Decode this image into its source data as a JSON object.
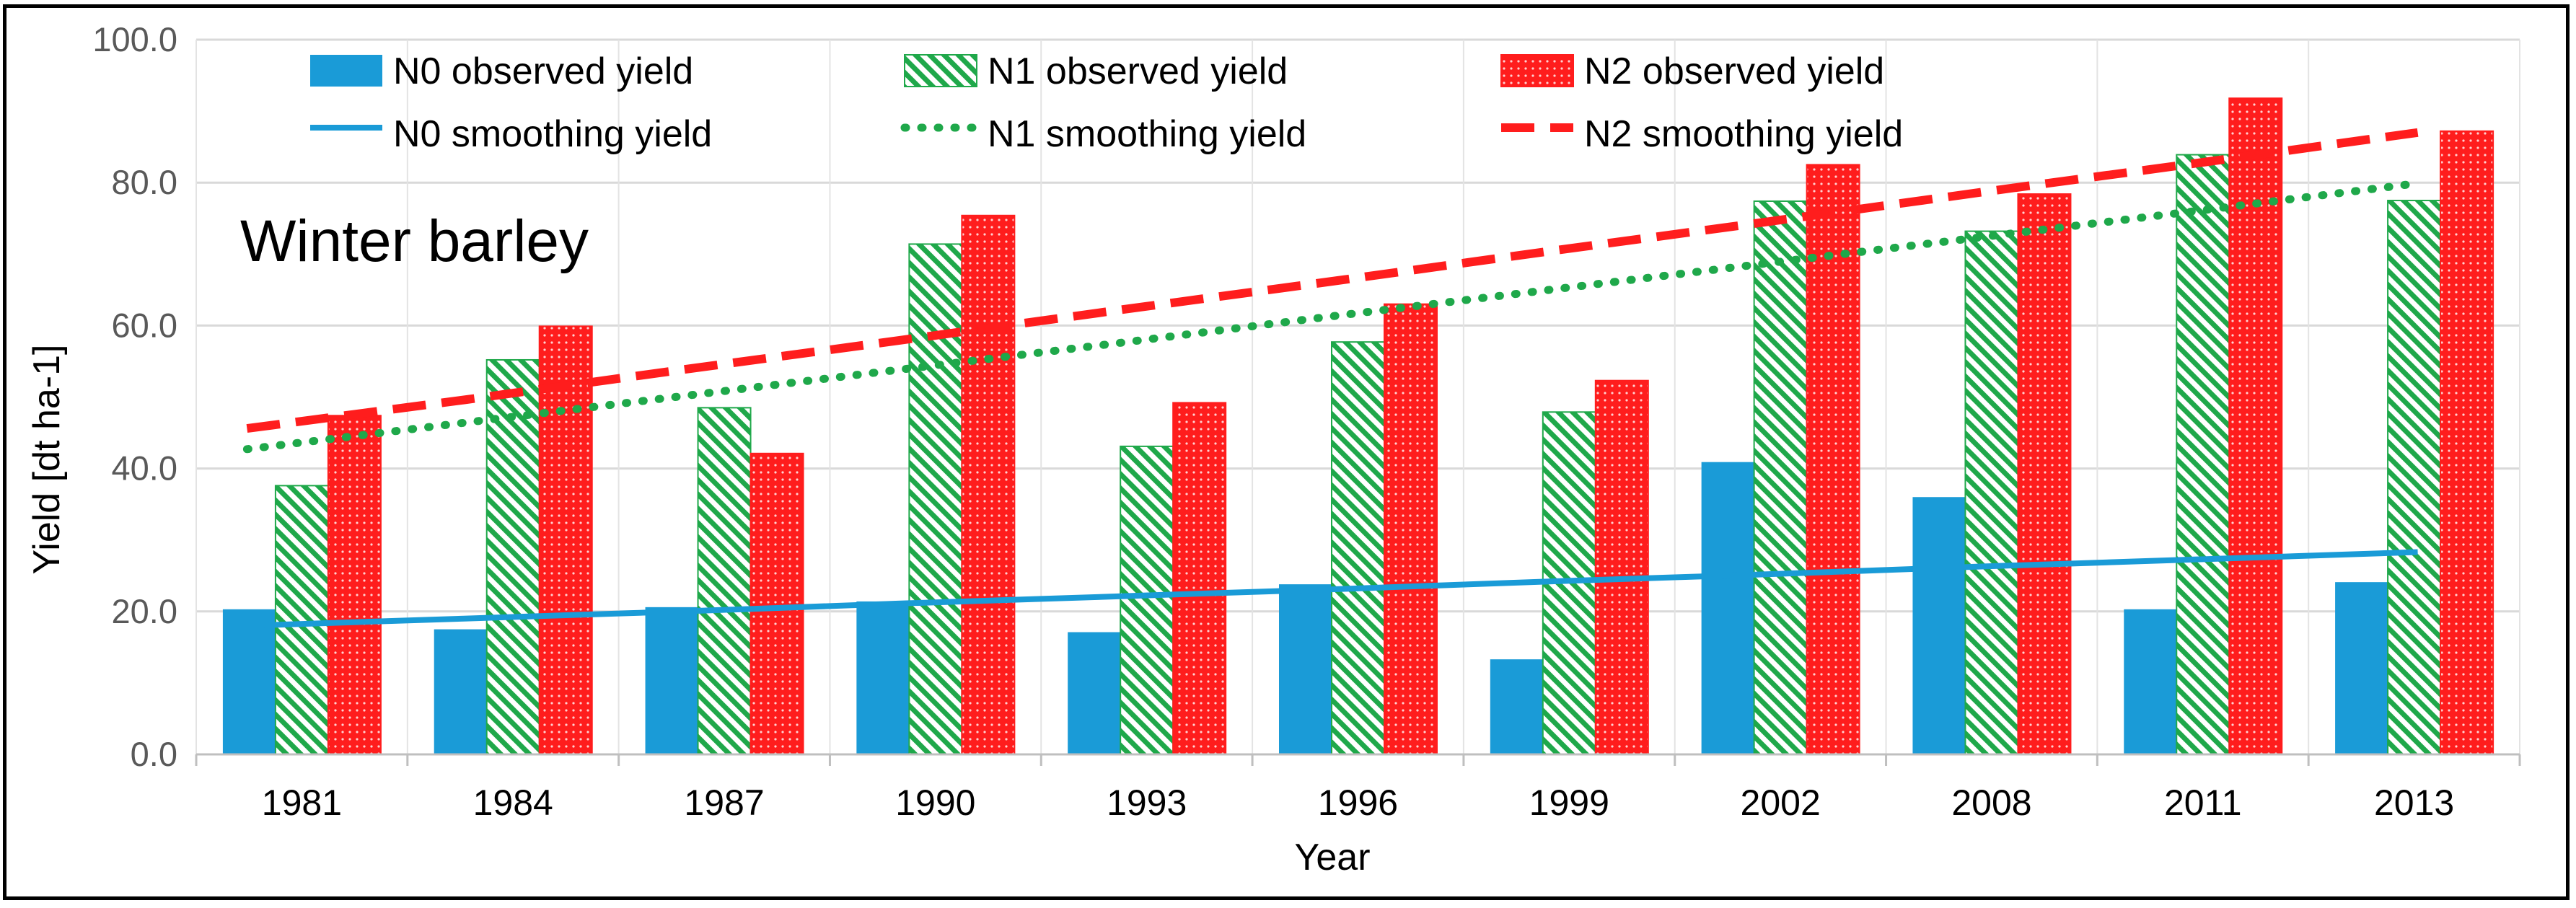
{
  "chart_data": {
    "type": "bar",
    "title": "",
    "annotation": "Winter barley",
    "xlabel": "Year",
    "ylabel": "Yield [dt ha-1]",
    "ylim": [
      0,
      100
    ],
    "yticks": [
      "0.0",
      "20.0",
      "40.0",
      "60.0",
      "80.0",
      "100.0"
    ],
    "grid": true,
    "legend_position": "top",
    "categories": [
      "1981",
      "1984",
      "1987",
      "1990",
      "1993",
      "1996",
      "1999",
      "2002",
      "2008",
      "2011",
      "2013"
    ],
    "series": [
      {
        "name": "N0 observed yield",
        "kind": "bar",
        "pattern": "solid",
        "color": "#1a9bd7",
        "values": [
          20.3,
          17.5,
          20.6,
          21.4,
          17.1,
          23.8,
          13.3,
          40.9,
          36.0,
          20.3,
          24.1
        ]
      },
      {
        "name": "N1 observed yield",
        "kind": "bar",
        "pattern": "diagonal-stripes",
        "color": "#1fa84a",
        "values": [
          37.6,
          55.2,
          48.5,
          71.4,
          43.1,
          57.7,
          47.9,
          77.4,
          73.2,
          83.9,
          77.5
        ]
      },
      {
        "name": "N2 observed yield",
        "kind": "bar",
        "pattern": "dotted-grid",
        "color": "#ff1d1d",
        "values": [
          47.4,
          59.9,
          42.1,
          75.4,
          49.2,
          63.0,
          52.3,
          82.5,
          78.4,
          91.8,
          87.2
        ]
      },
      {
        "name": "N0 smoothing yield",
        "kind": "line",
        "style": "solid",
        "color": "#1a9bd7",
        "values": [
          18.0,
          19.0,
          20.0,
          21.1,
          22.1,
          23.1,
          24.2,
          25.2,
          26.3,
          27.3,
          28.3
        ]
      },
      {
        "name": "N1 smoothing yield",
        "kind": "line",
        "style": "dotted",
        "color": "#1fa84a",
        "values": [
          42.7,
          46.4,
          50.1,
          53.8,
          57.5,
          61.3,
          65.0,
          68.7,
          72.4,
          76.1,
          79.9
        ]
      },
      {
        "name": "N2 smoothing yield",
        "kind": "line",
        "style": "dashed",
        "color": "#ff1d1d",
        "values": [
          45.6,
          49.6,
          53.8,
          57.9,
          62.1,
          66.2,
          70.4,
          74.5,
          78.7,
          82.8,
          87.0
        ]
      }
    ]
  }
}
